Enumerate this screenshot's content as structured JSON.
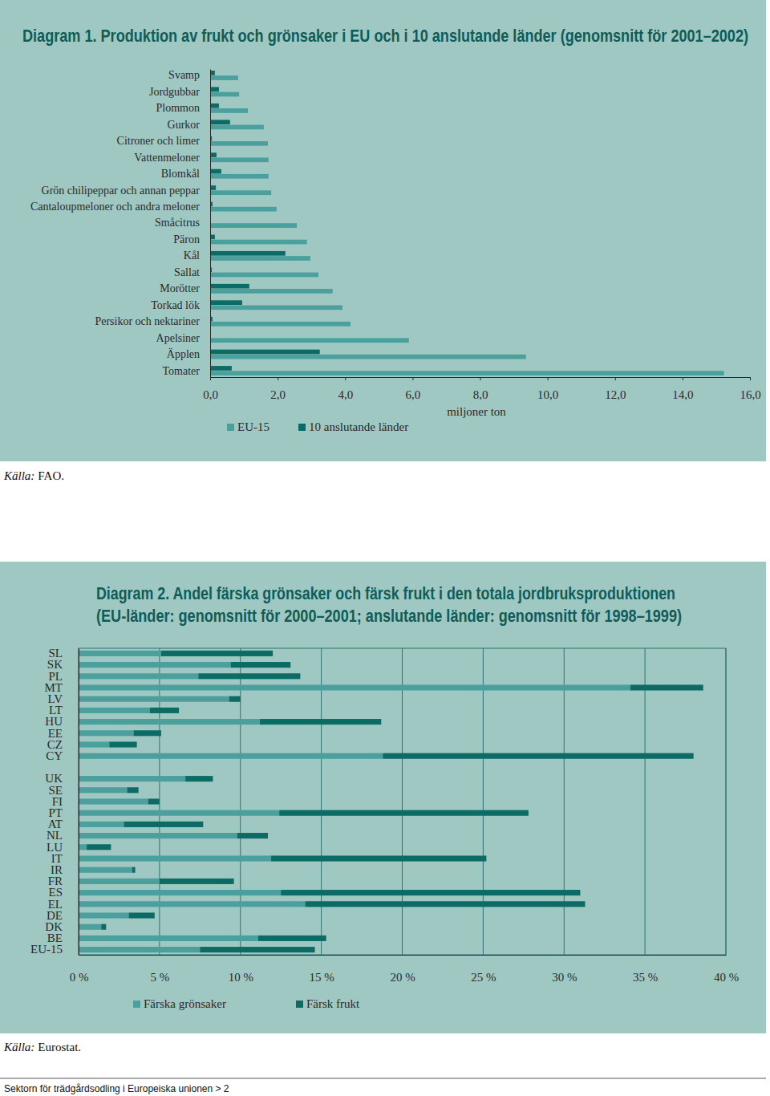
{
  "chart_data": [
    {
      "type": "bar",
      "orientation": "horizontal",
      "stacked": false,
      "grid": false,
      "title": "Diagram 1. Produktion av frukt och grönsaker i EU och i 10 anslutande länder (genomsnitt för 2001–2002)",
      "x_label": "miljoner ton",
      "categories": [
        "Svamp",
        "Jordgubbar",
        "Plommon",
        "Gurkor",
        "Citroner och limer",
        "Vattenmeloner",
        "Blomkål",
        "Grön chilipeppar och annan peppar",
        "Cantaloupmeloner och andra meloner",
        "Småcitrus",
        "Päron",
        "Kål",
        "Sallat",
        "Morötter",
        "Torkad lök",
        "Persikor och nektariner",
        "Apelsiner",
        "Äpplen",
        "Tomater"
      ],
      "series": [
        {
          "name": "EU-15",
          "color": "#4b9f9d",
          "values": [
            0.83,
            0.86,
            1.12,
            1.59,
            1.71,
            1.73,
            1.73,
            1.81,
            1.97,
            2.57,
            2.87,
            2.97,
            3.21,
            3.63,
            3.92,
            4.16,
            5.89,
            9.36,
            15.23
          ]
        },
        {
          "name": "10 anslutande länder",
          "color": "#0d6b65",
          "values": [
            0.14,
            0.26,
            0.26,
            0.59,
            0.05,
            0.19,
            0.33,
            0.17,
            0.07,
            0.02,
            0.14,
            2.23,
            0.05,
            1.16,
            0.95,
            0.07,
            0.02,
            3.25,
            0.64
          ]
        }
      ],
      "xlim": [
        0,
        16
      ],
      "xticks": [
        {
          "value": 0,
          "label": "0,0"
        },
        {
          "value": 2,
          "label": "2,0"
        },
        {
          "value": 4,
          "label": "4,0"
        },
        {
          "value": 6,
          "label": "6,0"
        },
        {
          "value": 8,
          "label": "8,0"
        },
        {
          "value": 10,
          "label": "10,0"
        },
        {
          "value": 12,
          "label": "12,0"
        },
        {
          "value": 14,
          "label": "14,0"
        },
        {
          "value": 16,
          "label": "16,0"
        }
      ],
      "source": {
        "label": "Källa:",
        "text": "FAO."
      }
    },
    {
      "type": "bar",
      "orientation": "horizontal",
      "stacked": true,
      "grid": true,
      "title": [
        "Diagram 2. Andel färska grönsaker och färsk frukt i den totala jordbruksproduktionen",
        "(EU-länder: genomsnitt för 2000–2001; anslutande länder: genomsnitt för 1998–1999)"
      ],
      "categories": [
        "SL",
        "SK",
        "PL",
        "MT",
        "LV",
        "LT",
        "HU",
        "EE",
        "CZ",
        "CY",
        null,
        "UK",
        "SE",
        "FI",
        "PT",
        "AT",
        "NL",
        "LU",
        "IT",
        "IR",
        "FR",
        "ES",
        "EL",
        "DE",
        "DK",
        "BE",
        "EU-15"
      ],
      "series": [
        {
          "name": "Färska grönsaker",
          "color": "#4b9f9d",
          "values": [
            5.1,
            9.4,
            7.4,
            34.1,
            9.3,
            4.4,
            11.2,
            3.4,
            1.9,
            18.8,
            null,
            6.6,
            3.0,
            4.3,
            12.4,
            2.8,
            9.8,
            0.5,
            11.9,
            3.3,
            5.0,
            12.5,
            14.0,
            3.1,
            1.4,
            11.1,
            7.5
          ]
        },
        {
          "name": "Färsk frukt",
          "color": "#0d6b65",
          "values": [
            6.9,
            3.7,
            6.3,
            4.5,
            0.7,
            1.8,
            7.5,
            1.7,
            1.7,
            19.2,
            null,
            1.7,
            0.7,
            0.7,
            15.4,
            4.9,
            1.9,
            1.5,
            13.3,
            0.2,
            4.6,
            18.5,
            17.3,
            1.6,
            0.3,
            4.2,
            7.1
          ]
        }
      ],
      "xlim": [
        0,
        40
      ],
      "xticks": [
        {
          "value": 0,
          "label": "0 %"
        },
        {
          "value": 5,
          "label": "5 %"
        },
        {
          "value": 10,
          "label": "10 %"
        },
        {
          "value": 15,
          "label": "15 %"
        },
        {
          "value": 20,
          "label": "20 %"
        },
        {
          "value": 25,
          "label": "25 %"
        },
        {
          "value": 30,
          "label": "30 %"
        },
        {
          "value": 35,
          "label": "35 %"
        },
        {
          "value": 40,
          "label": "40 %"
        }
      ],
      "source": {
        "label": "Källa:",
        "text": "Eurostat."
      }
    }
  ],
  "footer": "Sektorn för trädgårdsodling i Europeiska unionen > 2"
}
